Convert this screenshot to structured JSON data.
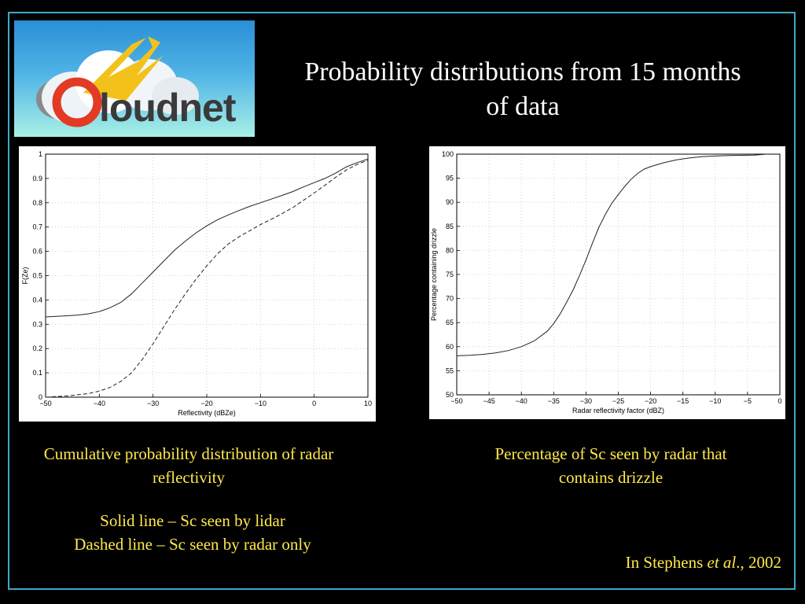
{
  "logo": {
    "text": "Cloudnet"
  },
  "title": "Probability distributions from 15 months of data",
  "captions": {
    "left_title": "Cumulative probability distribution of radar reflectivity",
    "solid_line": "Solid line – Sc seen by lidar",
    "dashed_line": "Dashed line – Sc seen by radar only",
    "right_title": "Percentage of Sc seen by radar that contains drizzle",
    "citation_prefix": "In Stephens ",
    "citation_italic": "et al",
    "citation_suffix": "., 2002"
  },
  "chart_data": [
    {
      "type": "line",
      "xlabel": "Reflectivity (dBZe)",
      "ylabel": "F(Ze)",
      "xlim": [
        -50,
        10
      ],
      "ylim": [
        0,
        1
      ],
      "xticks": [
        -50,
        -40,
        -30,
        -20,
        -10,
        0,
        10
      ],
      "yticks": [
        0,
        0.1,
        0.2,
        0.3,
        0.4,
        0.5,
        0.6,
        0.7,
        0.8,
        0.9,
        1
      ],
      "grid": true,
      "series": [
        {
          "style": "solid",
          "x": [
            -50,
            -46,
            -44,
            -42,
            -40,
            -38,
            -36,
            -34,
            -32,
            -30,
            -28,
            -26,
            -24,
            -22,
            -20,
            -18,
            -16,
            -14,
            -12,
            -10,
            -8,
            -6,
            -4,
            -2,
            0,
            2,
            4,
            6,
            8,
            10
          ],
          "y": [
            0.33,
            0.335,
            0.338,
            0.343,
            0.352,
            0.368,
            0.39,
            0.425,
            0.47,
            0.515,
            0.56,
            0.605,
            0.642,
            0.676,
            0.705,
            0.73,
            0.75,
            0.768,
            0.785,
            0.8,
            0.815,
            0.83,
            0.846,
            0.865,
            0.883,
            0.9,
            0.922,
            0.948,
            0.965,
            0.98
          ]
        },
        {
          "style": "dashed",
          "x": [
            -50,
            -46,
            -44,
            -42,
            -40,
            -38,
            -36,
            -34,
            -32,
            -30,
            -28,
            -26,
            -24,
            -22,
            -20,
            -18,
            -16,
            -14,
            -12,
            -10,
            -8,
            -6,
            -4,
            -2,
            0,
            2,
            4,
            6,
            8,
            10
          ],
          "y": [
            0,
            0.005,
            0.01,
            0.015,
            0.025,
            0.04,
            0.065,
            0.1,
            0.155,
            0.22,
            0.29,
            0.36,
            0.425,
            0.485,
            0.54,
            0.59,
            0.63,
            0.66,
            0.685,
            0.71,
            0.732,
            0.755,
            0.78,
            0.81,
            0.84,
            0.872,
            0.905,
            0.935,
            0.958,
            0.975
          ]
        }
      ]
    },
    {
      "type": "line",
      "xlabel": "Radar reflectivity factor (dBZ)",
      "ylabel": "Percentage containing drizzle",
      "xlim": [
        -50,
        0
      ],
      "ylim": [
        50,
        100
      ],
      "xticks": [
        -50,
        -45,
        -40,
        -35,
        -30,
        -25,
        -20,
        -15,
        -10,
        -5,
        0
      ],
      "yticks": [
        50,
        55,
        60,
        65,
        70,
        75,
        80,
        85,
        90,
        95,
        100
      ],
      "grid": true,
      "series": [
        {
          "style": "solid",
          "x": [
            -50,
            -48,
            -46,
            -44,
            -42,
            -40,
            -38,
            -36,
            -35,
            -34,
            -33,
            -32,
            -31,
            -30,
            -29,
            -28,
            -27,
            -26,
            -25,
            -24,
            -23,
            -22,
            -21,
            -20,
            -18,
            -16,
            -14,
            -12,
            -10,
            -8,
            -6,
            -4,
            -2
          ],
          "y": [
            58.1,
            58.2,
            58.4,
            58.7,
            59.2,
            60,
            61.2,
            63.2,
            64.8,
            66.8,
            69.2,
            71.8,
            74.8,
            78,
            81.5,
            84.8,
            87.5,
            89.8,
            91.6,
            93.3,
            94.8,
            96,
            96.9,
            97.4,
            98.2,
            98.8,
            99.2,
            99.5,
            99.6,
            99.7,
            99.75,
            99.8,
            100
          ]
        }
      ]
    }
  ]
}
